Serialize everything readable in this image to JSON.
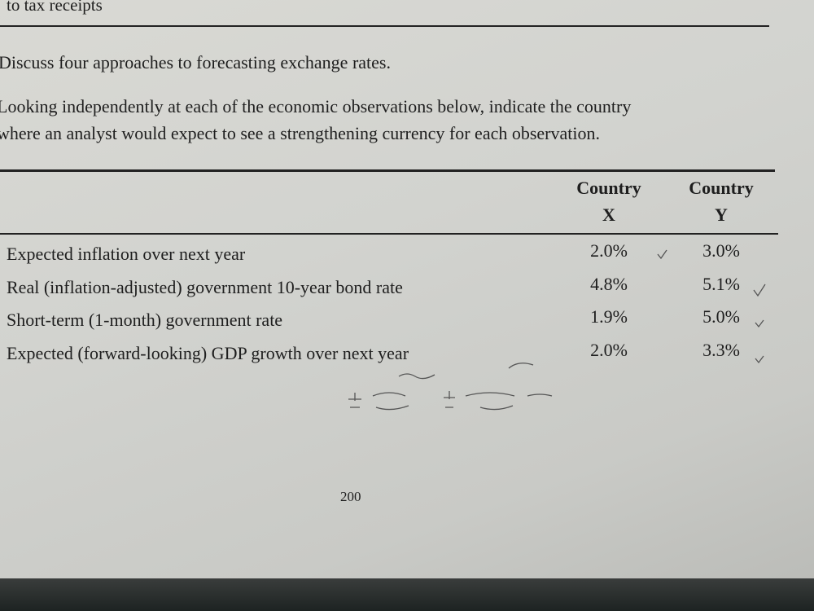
{
  "header": {
    "text": "to tax receipts"
  },
  "questions": [
    {
      "lines": [
        "Discuss four approaches to forecasting exchange rates."
      ]
    },
    {
      "lines": [
        "Looking independently at each of the economic observations below, indicate the country",
        "where an analyst would expect to see a strengthening currency for each observation."
      ]
    }
  ],
  "table": {
    "columns": [
      {
        "line1": "Country",
        "line2": "X"
      },
      {
        "line1": "Country",
        "line2": "Y"
      }
    ],
    "rows": [
      [
        "Expected inflation over next year",
        "2.0%",
        "3.0%"
      ],
      [
        "Real (inflation-adjusted) government 10-year bond rate",
        "4.8%",
        "5.1%"
      ],
      [
        "Short-term (1-month) government rate",
        "1.9%",
        "5.0%"
      ],
      [
        "Expected (forward-looking) GDP growth over next year",
        "2.0%",
        "3.3%"
      ]
    ]
  },
  "footer": {
    "page_number": "200"
  }
}
